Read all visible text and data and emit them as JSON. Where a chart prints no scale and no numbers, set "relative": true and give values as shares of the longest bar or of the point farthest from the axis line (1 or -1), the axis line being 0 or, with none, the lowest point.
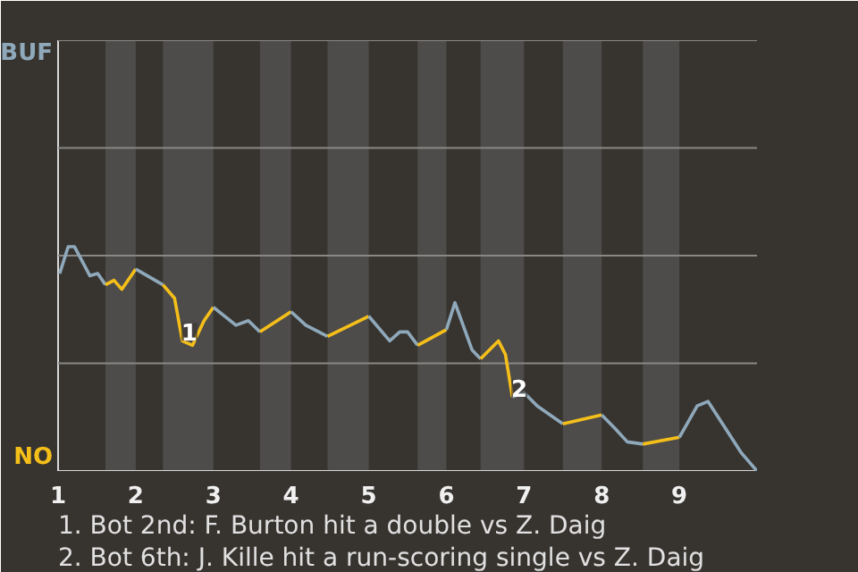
{
  "chart_data": {
    "type": "line",
    "relative": true,
    "xlim": [
      1,
      10
    ],
    "xticks": [
      1,
      2,
      3,
      4,
      5,
      6,
      7,
      8,
      9
    ],
    "ref_lines": [
      {
        "axis": "y",
        "value": 0.48,
        "color": "#8a8885"
      },
      {
        "axis": "y",
        "value": 0.96,
        "color": "#8a8885"
      },
      {
        "axis": "y",
        "value": 1.44,
        "color": "#8a8885"
      },
      {
        "axis": "y",
        "value": 1.92,
        "color": "#8a8885"
      }
    ],
    "bands": [
      {
        "axis": "x",
        "from": 1.61,
        "to": 2,
        "color": "#4e4c4a"
      },
      {
        "axis": "x",
        "from": 2.35,
        "to": 3,
        "color": "#4e4c4a"
      },
      {
        "axis": "x",
        "from": 3.6,
        "to": 4,
        "color": "#4e4c4a"
      },
      {
        "axis": "x",
        "from": 4.47,
        "to": 5,
        "color": "#4e4c4a"
      },
      {
        "axis": "x",
        "from": 5.63,
        "to": 6,
        "color": "#4e4c4a"
      },
      {
        "axis": "x",
        "from": 6.44,
        "to": 7,
        "color": "#4e4c4a"
      },
      {
        "axis": "x",
        "from": 7.5,
        "to": 8,
        "color": "#4e4c4a"
      },
      {
        "axis": "x",
        "from": 8.53,
        "to": 9,
        "color": "#4e4c4a"
      }
    ],
    "series": [
      {
        "color": "#8fa9bb",
        "x": [
          1.02,
          1.13,
          1.21,
          1.41,
          1.51,
          1.61
        ],
        "values": [
          0.88,
          1,
          1,
          0.87,
          0.88,
          0.83
        ]
      },
      {
        "color": "#f5bf1a",
        "x": [
          1.61,
          1.72,
          1.82,
          2.0
        ],
        "values": [
          0.83,
          0.85,
          0.81,
          0.9
        ]
      },
      {
        "color": "#8fa9bb",
        "x": [
          2.0,
          2.1,
          2.35
        ],
        "values": [
          0.9,
          0.88,
          0.83
        ]
      },
      {
        "color": "#f5bf1a",
        "x": [
          2.35,
          2.5,
          2.6,
          2.73,
          2.88,
          3.0
        ],
        "values": [
          0.83,
          0.77,
          0.58,
          0.56,
          0.67,
          0.73
        ]
      },
      {
        "color": "#8fa9bb",
        "x": [
          3.0,
          3.29,
          3.45,
          3.6
        ],
        "values": [
          0.73,
          0.65,
          0.67,
          0.62
        ]
      },
      {
        "color": "#f5bf1a",
        "x": [
          3.6,
          4.0
        ],
        "values": [
          0.62,
          0.71
        ]
      },
      {
        "color": "#8fa9bb",
        "x": [
          4.0,
          4.19,
          4.47
        ],
        "values": [
          0.71,
          0.65,
          0.6
        ]
      },
      {
        "color": "#f5bf1a",
        "x": [
          4.47,
          5.0
        ],
        "values": [
          0.6,
          0.69
        ]
      },
      {
        "color": "#8fa9bb",
        "x": [
          5.0,
          5.27,
          5.4,
          5.5,
          5.63
        ],
        "values": [
          0.69,
          0.58,
          0.62,
          0.62,
          0.56
        ]
      },
      {
        "color": "#f5bf1a",
        "x": [
          5.63,
          6.0
        ],
        "values": [
          0.56,
          0.63
        ]
      },
      {
        "color": "#8fa9bb",
        "x": [
          6.0,
          6.11,
          6.33,
          6.44
        ],
        "values": [
          0.63,
          0.75,
          0.54,
          0.5
        ]
      },
      {
        "color": "#f5bf1a",
        "x": [
          6.44,
          6.67,
          6.76,
          6.85
        ],
        "values": [
          0.5,
          0.58,
          0.52,
          0.33
        ]
      },
      {
        "color": "#8fa9bb",
        "x": [
          6.85,
          7.0,
          7.17,
          7.5
        ],
        "values": [
          0.33,
          0.35,
          0.29,
          0.21
        ]
      },
      {
        "color": "#f5bf1a",
        "x": [
          7.5,
          8.0
        ],
        "values": [
          0.21,
          0.25
        ]
      },
      {
        "color": "#8fa9bb",
        "x": [
          8.0,
          8.17,
          8.33,
          8.53
        ],
        "values": [
          0.25,
          0.19,
          0.13,
          0.12
        ]
      },
      {
        "color": "#f5bf1a",
        "x": [
          8.53,
          9.0
        ],
        "values": [
          0.12,
          0.15
        ]
      },
      {
        "color": "#8fa9bb",
        "x": [
          9.0,
          9.23,
          9.37,
          9.8,
          10.0
        ],
        "values": [
          0.15,
          0.29,
          0.31,
          0.08,
          0
        ]
      }
    ],
    "annotations": [
      "BUF",
      "NO",
      {
        "text": "1",
        "x": 2.69,
        "y": 0.62
      },
      {
        "text": "2",
        "x": 6.94,
        "y": 0.37
      },
      "1. Bot 2nd: F. Burton hit a double vs Z. Daig",
      "2. Bot 6th: J. Kille hit a run-scoring single vs Z. Daig"
    ]
  }
}
